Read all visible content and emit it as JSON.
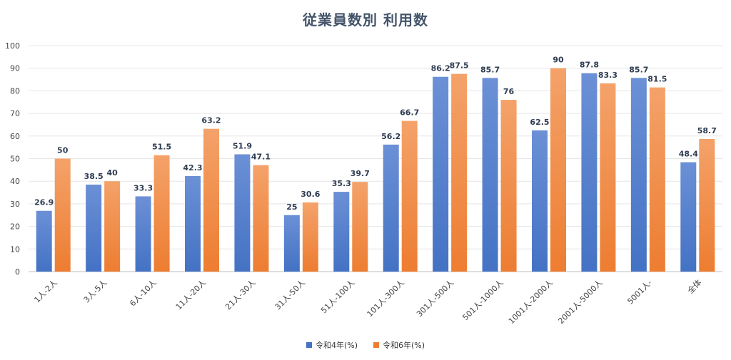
{
  "chart_data": {
    "type": "bar",
    "title": "従業員数別 利用数",
    "categories": [
      "1人-2人",
      "3人-5人",
      "6人-10人",
      "11人-20人",
      "21人-30人",
      "31人-50人",
      "51人-100人",
      "101人-300人",
      "301人-500人",
      "501人-1000人",
      "1001人-2000人",
      "2001人-5000人",
      "5001人-",
      "全体"
    ],
    "series": [
      {
        "name": "令和4年(%)",
        "color": "#4472c4",
        "color_light": "#6b90d6",
        "values": [
          26.9,
          38.5,
          33.3,
          42.3,
          51.9,
          25,
          35.3,
          56.2,
          86.2,
          85.7,
          62.5,
          87.8,
          85.7,
          48.4
        ]
      },
      {
        "name": "令和6年(%)",
        "color": "#ed7d31",
        "color_light": "#f4a26a",
        "values": [
          50,
          40,
          51.5,
          63.2,
          47.1,
          30.6,
          39.7,
          66.7,
          87.5,
          76,
          90,
          83.3,
          81.5,
          58.7
        ]
      }
    ],
    "ylim": [
      0,
      100
    ],
    "yticks": [
      0,
      10,
      20,
      30,
      40,
      50,
      60,
      70,
      80,
      90,
      100
    ],
    "grid": true,
    "legend_position": "bottom"
  }
}
